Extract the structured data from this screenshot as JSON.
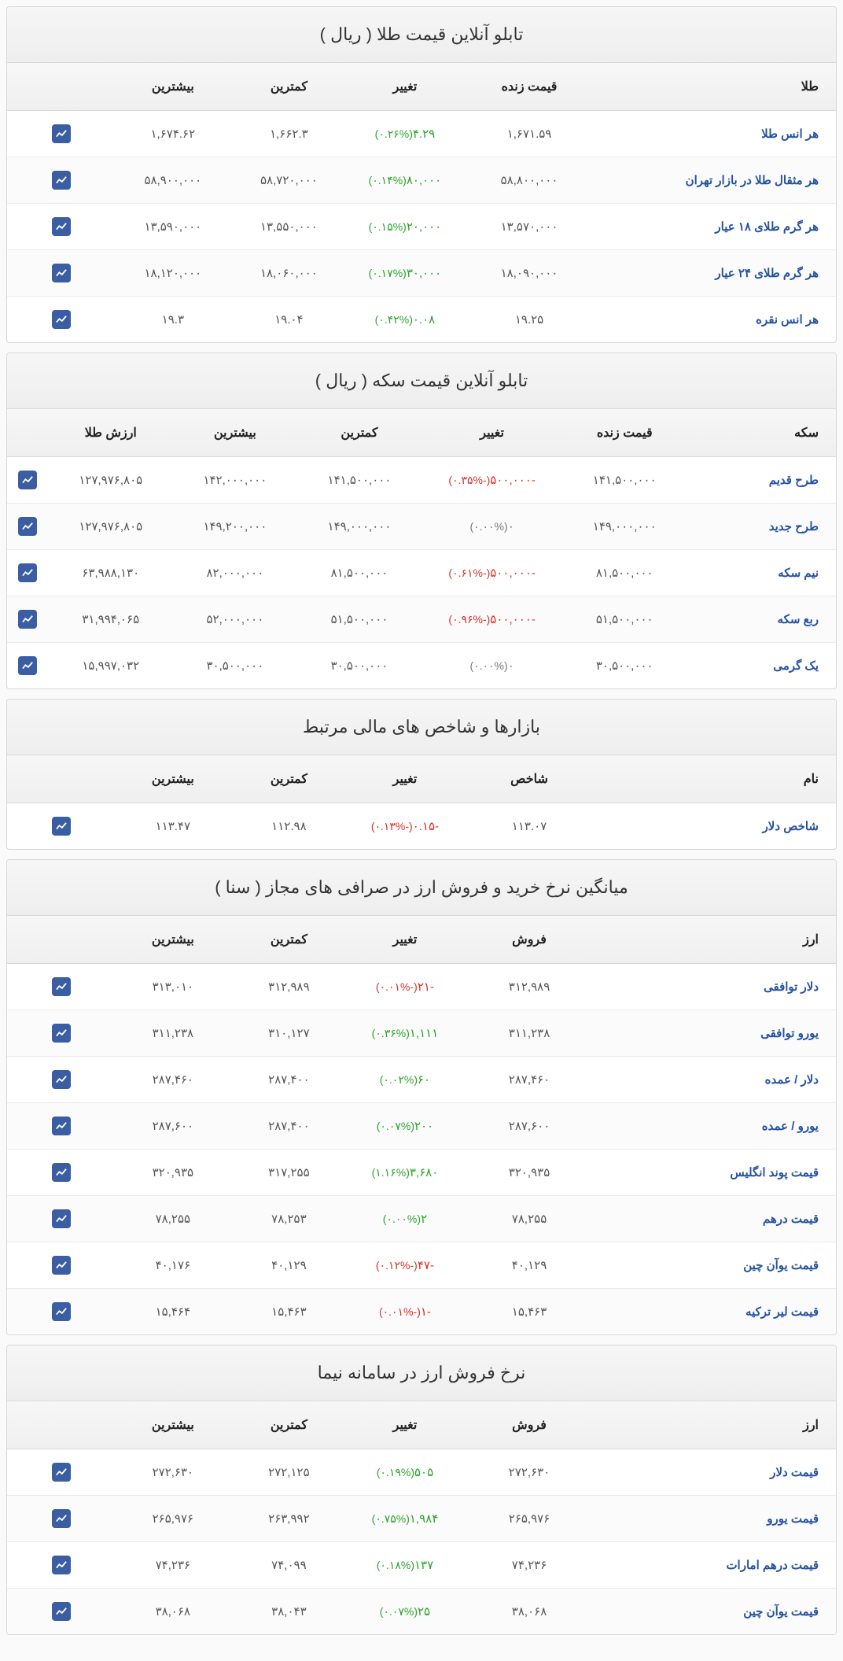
{
  "gold": {
    "title": "تابلو آنلاین قیمت طلا ( ریال )",
    "headers": {
      "name": "طلا",
      "live": "قیمت زنده",
      "change": "تغییر",
      "min": "کمترین",
      "max": "بیشترین"
    },
    "rows": [
      {
        "name": "هر انس طلا",
        "live": "۱,۶۷۱.۵۹",
        "chg_val": "۴.۲۹",
        "chg_pct": "۰.۲۶%",
        "dir": "up",
        "min": "۱,۶۶۲.۳",
        "max": "۱,۶۷۴.۶۲"
      },
      {
        "name": "هر مثقال طلا در بازار تهران",
        "live": "۵۸,۸۰۰,۰۰۰",
        "chg_val": "۸۰,۰۰۰",
        "chg_pct": "۰.۱۴%",
        "dir": "up",
        "min": "۵۸,۷۲۰,۰۰۰",
        "max": "۵۸,۹۰۰,۰۰۰"
      },
      {
        "name": "هر گرم طلای ۱۸ عیار",
        "live": "۱۳,۵۷۰,۰۰۰",
        "chg_val": "۲۰,۰۰۰",
        "chg_pct": "۰.۱۵%",
        "dir": "up",
        "min": "۱۳,۵۵۰,۰۰۰",
        "max": "۱۳,۵۹۰,۰۰۰"
      },
      {
        "name": "هر گرم طلای ۲۴ عیار",
        "live": "۱۸,۰۹۰,۰۰۰",
        "chg_val": "۳۰,۰۰۰",
        "chg_pct": "۰.۱۷%",
        "dir": "up",
        "min": "۱۸,۰۶۰,۰۰۰",
        "max": "۱۸,۱۲۰,۰۰۰"
      },
      {
        "name": "هر انس نقره",
        "live": "۱۹.۲۵",
        "chg_val": "۰.۰۸",
        "chg_pct": "۰.۴۲%",
        "dir": "up",
        "min": "۱۹.۰۴",
        "max": "۱۹.۳"
      }
    ]
  },
  "coin": {
    "title": "تابلو آنلاین قیمت سکه ( ریال )",
    "headers": {
      "name": "سکه",
      "live": "قیمت زنده",
      "change": "تغییر",
      "min": "کمترین",
      "max": "بیشترین",
      "gv": "ارزش طلا"
    },
    "rows": [
      {
        "name": "طرح قدیم",
        "live": "۱۴۱,۵۰۰,۰۰۰",
        "chg_val": "-۵۰۰,۰۰۰",
        "chg_pct": "-۰.۳۵%",
        "dir": "down",
        "min": "۱۴۱,۵۰۰,۰۰۰",
        "max": "۱۴۲,۰۰۰,۰۰۰",
        "gv": "۱۲۷,۹۷۶,۸۰۵"
      },
      {
        "name": "طرح جدید",
        "live": "۱۴۹,۰۰۰,۰۰۰",
        "chg_val": "۰",
        "chg_pct": "۰.۰۰%",
        "dir": "flat",
        "min": "۱۴۹,۰۰۰,۰۰۰",
        "max": "۱۴۹,۲۰۰,۰۰۰",
        "gv": "۱۲۷,۹۷۶,۸۰۵"
      },
      {
        "name": "نیم سکه",
        "live": "۸۱,۵۰۰,۰۰۰",
        "chg_val": "-۵۰۰,۰۰۰",
        "chg_pct": "-۰.۶۱%",
        "dir": "down",
        "min": "۸۱,۵۰۰,۰۰۰",
        "max": "۸۲,۰۰۰,۰۰۰",
        "gv": "۶۳,۹۸۸,۱۳۰"
      },
      {
        "name": "ربع سکه",
        "live": "۵۱,۵۰۰,۰۰۰",
        "chg_val": "-۵۰۰,۰۰۰",
        "chg_pct": "-۰.۹۶%",
        "dir": "down",
        "min": "۵۱,۵۰۰,۰۰۰",
        "max": "۵۲,۰۰۰,۰۰۰",
        "gv": "۳۱,۹۹۴,۰۶۵"
      },
      {
        "name": "یک گرمی",
        "live": "۳۰,۵۰۰,۰۰۰",
        "chg_val": "۰",
        "chg_pct": "۰.۰۰%",
        "dir": "flat",
        "min": "۳۰,۵۰۰,۰۰۰",
        "max": "۳۰,۵۰۰,۰۰۰",
        "gv": "۱۵,۹۹۷,۰۳۲"
      }
    ]
  },
  "index": {
    "title": "بازارها و شاخص های مالی مرتبط",
    "headers": {
      "name": "نام",
      "live": "شاخص",
      "change": "تغییر",
      "min": "کمترین",
      "max": "بیشترین"
    },
    "rows": [
      {
        "name": "شاخص دلار",
        "live": "۱۱۳.۰۷",
        "chg_val": "-۰.۱۵",
        "chg_pct": "-۰.۱۳%",
        "dir": "down",
        "min": "۱۱۲.۹۸",
        "max": "۱۱۳.۴۷"
      }
    ]
  },
  "sana": {
    "title": "میانگین نرخ خرید و فروش ارز در صرافی های مجاز ( سنا )",
    "headers": {
      "name": "ارز",
      "live": "فروش",
      "change": "تغییر",
      "min": "کمترین",
      "max": "بیشترین"
    },
    "rows": [
      {
        "name": "دلار توافقی",
        "live": "۳۱۲,۹۸۹",
        "chg_val": "-۲۱",
        "chg_pct": "-۰.۰۱%",
        "dir": "down",
        "min": "۳۱۲,۹۸۹",
        "max": "۳۱۳,۰۱۰"
      },
      {
        "name": "یورو توافقی",
        "live": "۳۱۱,۲۳۸",
        "chg_val": "۱,۱۱۱",
        "chg_pct": "۰.۳۶%",
        "dir": "up",
        "min": "۳۱۰,۱۲۷",
        "max": "۳۱۱,۲۳۸"
      },
      {
        "name": "دلار / عمده",
        "live": "۲۸۷,۴۶۰",
        "chg_val": "۶۰",
        "chg_pct": "۰.۰۲%",
        "dir": "up",
        "min": "۲۸۷,۴۰۰",
        "max": "۲۸۷,۴۶۰"
      },
      {
        "name": "یورو / عمده",
        "live": "۲۸۷,۶۰۰",
        "chg_val": "۲۰۰",
        "chg_pct": "۰.۰۷%",
        "dir": "up",
        "min": "۲۸۷,۴۰۰",
        "max": "۲۸۷,۶۰۰"
      },
      {
        "name": "قیمت پوند انگلیس",
        "live": "۳۲۰,۹۳۵",
        "chg_val": "۳,۶۸۰",
        "chg_pct": "۱.۱۶%",
        "dir": "up",
        "min": "۳۱۷,۲۵۵",
        "max": "۳۲۰,۹۳۵"
      },
      {
        "name": "قیمت درهم",
        "live": "۷۸,۲۵۵",
        "chg_val": "۲",
        "chg_pct": "۰.۰۰%",
        "dir": "up",
        "min": "۷۸,۲۵۳",
        "max": "۷۸,۲۵۵"
      },
      {
        "name": "قیمت یوآن چین",
        "live": "۴۰,۱۲۹",
        "chg_val": "-۴۷",
        "chg_pct": "-۰.۱۲%",
        "dir": "down",
        "min": "۴۰,۱۲۹",
        "max": "۴۰,۱۷۶"
      },
      {
        "name": "قیمت لیر ترکیه",
        "live": "۱۵,۴۶۳",
        "chg_val": "-۱",
        "chg_pct": "-۰.۰۱%",
        "dir": "down",
        "min": "۱۵,۴۶۳",
        "max": "۱۵,۴۶۴"
      }
    ]
  },
  "nima": {
    "title": "نرخ فروش ارز در سامانه نیما",
    "headers": {
      "name": "ارز",
      "live": "فروش",
      "change": "تغییر",
      "min": "کمترین",
      "max": "بیشترین"
    },
    "rows": [
      {
        "name": "قیمت دلار",
        "live": "۲۷۲,۶۳۰",
        "chg_val": "۵۰۵",
        "chg_pct": "۰.۱۹%",
        "dir": "up",
        "min": "۲۷۲,۱۲۵",
        "max": "۲۷۲,۶۳۰"
      },
      {
        "name": "قیمت یورو",
        "live": "۲۶۵,۹۷۶",
        "chg_val": "۱,۹۸۴",
        "chg_pct": "۰.۷۵%",
        "dir": "up",
        "min": "۲۶۳,۹۹۲",
        "max": "۲۶۵,۹۷۶"
      },
      {
        "name": "قیمت درهم امارات",
        "live": "۷۴,۲۳۶",
        "chg_val": "۱۳۷",
        "chg_pct": "۰.۱۸%",
        "dir": "up",
        "min": "۷۴,۰۹۹",
        "max": "۷۴,۲۳۶"
      },
      {
        "name": "قیمت یوآن چین",
        "live": "۳۸,۰۶۸",
        "chg_val": "۲۵",
        "chg_pct": "۰.۰۷%",
        "dir": "up",
        "min": "۳۸,۰۴۳",
        "max": "۳۸,۰۶۸"
      }
    ]
  }
}
